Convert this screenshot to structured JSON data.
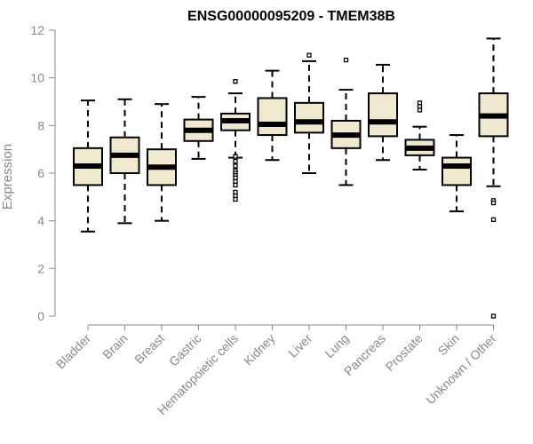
{
  "chart_data": {
    "type": "boxplot",
    "title": "ENSG00000095209 - TMEM38B",
    "ylabel": "Expression",
    "xlabel": "",
    "ylim": [
      0,
      12
    ],
    "yticks": [
      "0",
      "2",
      "4",
      "6",
      "8",
      "10",
      "12"
    ],
    "box_fill": "#f0e9d0",
    "categories": [
      "Bladder",
      "Brain",
      "Breast",
      "Gastric",
      "Hematopoietic cells",
      "Kidney",
      "Liver",
      "Lung",
      "Pancreas",
      "Prostate",
      "Skin",
      "Unknown / Other"
    ],
    "boxes": [
      {
        "whisker_low": 3.55,
        "q1": 5.5,
        "median": 6.3,
        "q3": 7.05,
        "whisker_high": 9.05,
        "outliers": []
      },
      {
        "whisker_low": 3.9,
        "q1": 6.0,
        "median": 6.75,
        "q3": 7.5,
        "whisker_high": 9.1,
        "outliers": []
      },
      {
        "whisker_low": 4.0,
        "q1": 5.5,
        "median": 6.25,
        "q3": 7.0,
        "whisker_high": 8.9,
        "outliers": []
      },
      {
        "whisker_low": 6.6,
        "q1": 7.35,
        "median": 7.8,
        "q3": 8.25,
        "whisker_high": 9.2,
        "outliers": []
      },
      {
        "whisker_low": 6.65,
        "q1": 7.8,
        "median": 8.2,
        "q3": 8.5,
        "whisker_high": 9.35,
        "outliers": [
          9.85,
          6.7,
          6.5,
          6.3,
          6.1,
          6.0,
          5.9,
          5.8,
          5.65,
          5.5,
          5.2,
          5.05,
          4.9
        ]
      },
      {
        "whisker_low": 6.55,
        "q1": 7.6,
        "median": 8.05,
        "q3": 9.15,
        "whisker_high": 10.3,
        "outliers": []
      },
      {
        "whisker_low": 6.0,
        "q1": 7.7,
        "median": 8.15,
        "q3": 8.95,
        "whisker_high": 10.7,
        "outliers": [
          10.95
        ]
      },
      {
        "whisker_low": 5.5,
        "q1": 7.05,
        "median": 7.6,
        "q3": 8.2,
        "whisker_high": 9.5,
        "outliers": [
          10.75
        ]
      },
      {
        "whisker_low": 6.55,
        "q1": 7.55,
        "median": 8.15,
        "q3": 9.35,
        "whisker_high": 10.55,
        "outliers": []
      },
      {
        "whisker_low": 6.15,
        "q1": 6.75,
        "median": 7.05,
        "q3": 7.4,
        "whisker_high": 7.95,
        "outliers": [
          8.95,
          8.8,
          8.65
        ]
      },
      {
        "whisker_low": 4.4,
        "q1": 5.5,
        "median": 6.3,
        "q3": 6.65,
        "whisker_high": 7.6,
        "outliers": []
      },
      {
        "whisker_low": 5.45,
        "q1": 7.55,
        "median": 8.4,
        "q3": 9.35,
        "whisker_high": 11.65,
        "outliers": [
          4.85,
          4.75,
          4.05,
          0.0
        ]
      }
    ]
  }
}
